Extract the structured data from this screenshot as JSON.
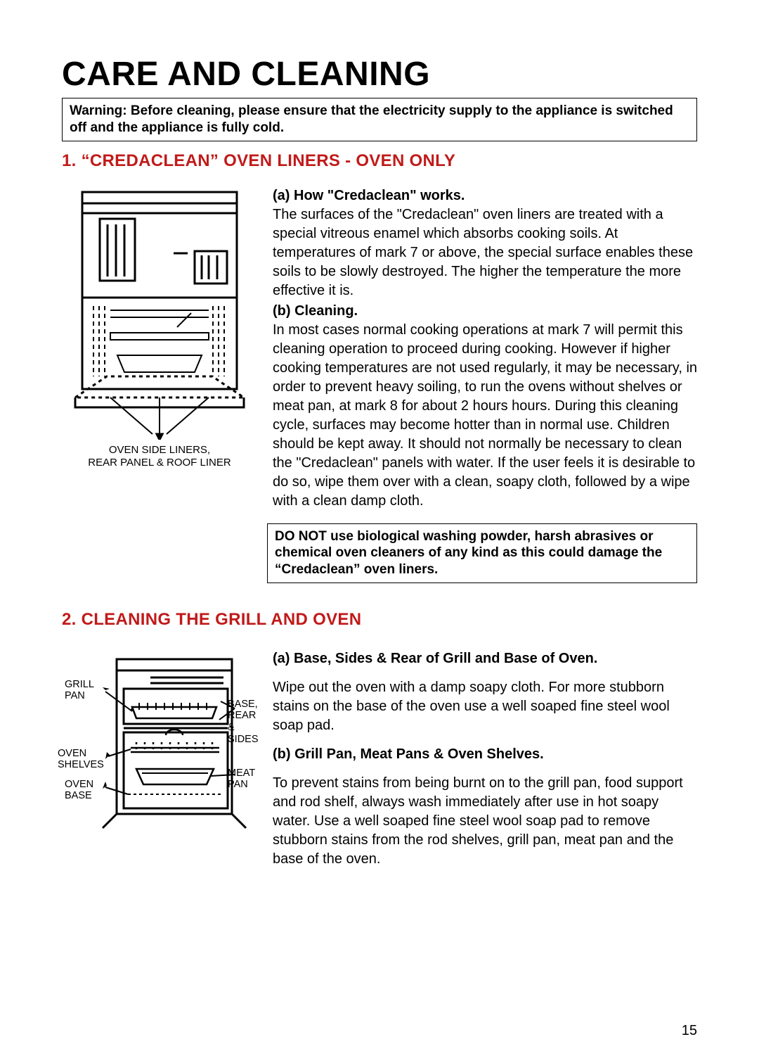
{
  "title": "CARE AND CLEANING",
  "warning": "Warning: Before cleaning, please ensure that the electricity supply to the appliance is switched off and the appliance is fully cold.",
  "section1": {
    "heading": "1. “CREDACLEAN” OVEN LINERS - OVEN ONLY",
    "subA_label": "(a) How \"Credaclean\" works.",
    "subA_text": "The surfaces of the \"Credaclean\" oven liners are treated with a special vitreous enamel which absorbs cooking soils. At temperatures of mark 7 or above, the special surface enables these soils to be slowly destroyed. The higher the temperature the more effective it is.",
    "subB_label": "(b) Cleaning.",
    "subB_text": "In most cases normal cooking operations at mark 7 will permit this cleaning operation to proceed during cooking. However if higher cooking temperatures are not used regularly, it may be necessary, in order to prevent heavy soiling, to run the ovens without shelves or meat pan, at mark 8 for about 2 hours hours. During this cleaning cycle, surfaces may become hotter than in normal use. Children should be kept away. It should not normally be necessary to clean the \"Credaclean\" panels with water. If the user feels it is desirable to do so, wipe them over with a clean, soapy cloth, followed by a wipe with a clean damp cloth.",
    "caution": "DO NOT use biological washing powder, harsh abrasives or chemical oven cleaners of any kind as this could damage the “Credaclean” oven liners.",
    "fig_caption_line1": "OVEN SIDE LINERS,",
    "fig_caption_line2": "REAR PANEL & ROOF LINER"
  },
  "section2": {
    "heading": "2. CLEANING THE GRILL AND OVEN",
    "subA_label": "(a) Base, Sides & Rear of Grill and Base of Oven.",
    "subA_text": "Wipe out the oven with a damp soapy cloth. For more stubborn stains on the base of the oven use a well soaped fine steel wool soap pad.",
    "subB_label": "(b) Grill Pan, Meat Pans & Oven Shelves.",
    "subB_text": "To prevent stains from being burnt on to the grill pan, food support and rod shelf, always wash immediately after use in hot soapy water. Use a well soaped fine steel wool soap pad to remove stubborn stains from the rod shelves, grill pan, meat pan and the base of the oven.",
    "labels": {
      "grill_pan": "GRILL\nPAN",
      "base_rear_sides": "BASE,\nREAR &\nSIDES",
      "oven_shelves": "OVEN\nSHELVES",
      "meat_pan": "MEAT\nPAN",
      "oven_base": "OVEN\nBASE"
    }
  },
  "page_number": "15",
  "colors": {
    "heading": "#c11a1a",
    "text": "#000000",
    "bg": "#ffffff"
  }
}
